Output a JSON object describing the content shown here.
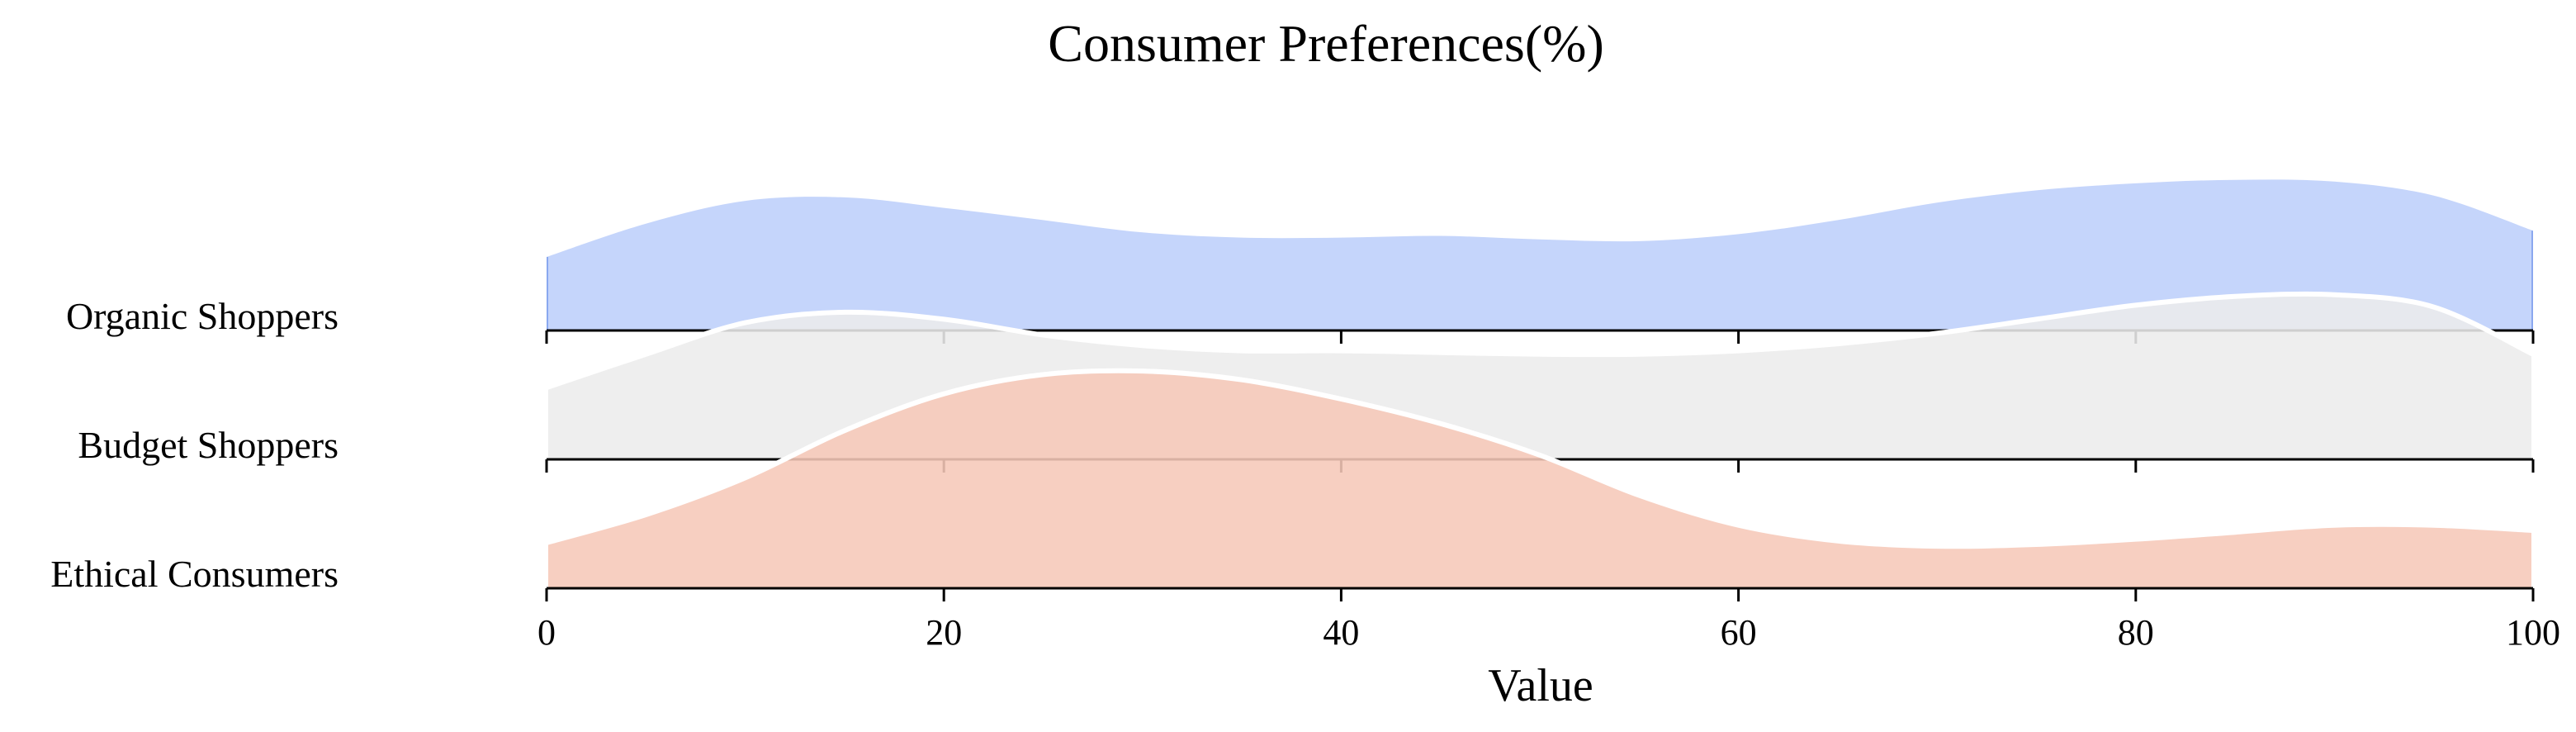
{
  "chart_data": {
    "type": "area",
    "title": "Consumer Preferences(%)",
    "xlabel": "Value",
    "ylabel": "",
    "xlim": [
      0,
      100
    ],
    "x_ticks": [
      "0",
      "20",
      "40",
      "60",
      "80",
      "100"
    ],
    "grid": false,
    "legend": "none",
    "categories": [
      "Organic Shoppers",
      "Budget Shoppers",
      "Ethical Consumers"
    ],
    "x": [
      0,
      5,
      10,
      15,
      20,
      25,
      30,
      35,
      40,
      45,
      50,
      55,
      60,
      65,
      70,
      75,
      80,
      85,
      90,
      95,
      100
    ],
    "series": [
      {
        "name": "Organic Shoppers",
        "color": "#c5d5fb",
        "edge_color": "#8aa8ef",
        "values": [
          0.42,
          0.61,
          0.74,
          0.76,
          0.7,
          0.63,
          0.56,
          0.53,
          0.53,
          0.54,
          0.52,
          0.51,
          0.55,
          0.63,
          0.73,
          0.8,
          0.84,
          0.86,
          0.85,
          0.77,
          0.57
        ]
      },
      {
        "name": "Budget Shoppers",
        "color": "#ececec",
        "edge_color": "#ffffff",
        "values": [
          0.41,
          0.6,
          0.78,
          0.84,
          0.8,
          0.71,
          0.65,
          0.62,
          0.62,
          0.61,
          0.6,
          0.6,
          0.62,
          0.66,
          0.72,
          0.8,
          0.88,
          0.93,
          0.94,
          0.87,
          0.6
        ]
      },
      {
        "name": "Ethical Consumers",
        "color": "#f6c8b8",
        "edge_color": "#ffffff",
        "values": [
          0.26,
          0.42,
          0.63,
          0.9,
          1.11,
          1.22,
          1.24,
          1.19,
          1.08,
          0.94,
          0.76,
          0.53,
          0.36,
          0.27,
          0.24,
          0.25,
          0.28,
          0.32,
          0.36,
          0.36,
          0.33
        ]
      }
    ]
  }
}
